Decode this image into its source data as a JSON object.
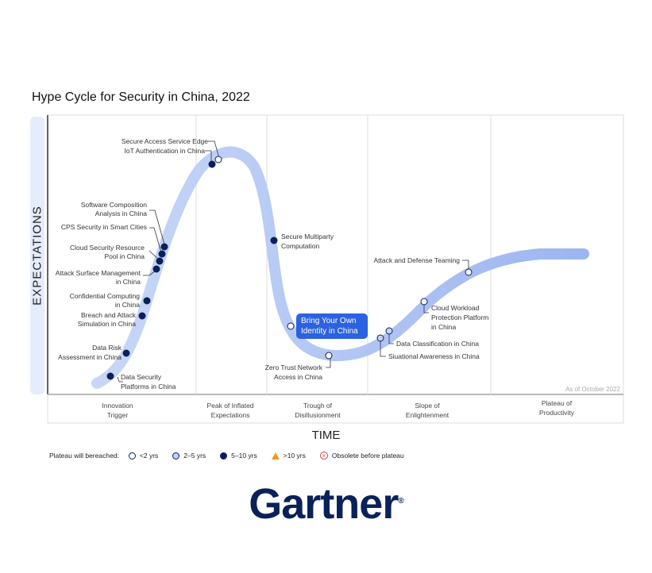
{
  "title": "Hype Cycle for Security in China, 2022",
  "y_axis": "EXPECTATIONS",
  "x_axis": "TIME",
  "as_of": "As of October 2022",
  "phases": [
    [
      "Innovation",
      "Trigger"
    ],
    [
      "Peak of Inflated",
      "Expectations"
    ],
    [
      "Trough of",
      "Disillusionment"
    ],
    [
      "Slope of",
      "Enlightenment"
    ],
    [
      "Plateau of",
      "Productivity"
    ]
  ],
  "technologies": [
    {
      "name": [
        "Secure Access Service Edge"
      ],
      "category": "<2 yrs",
      "phase": "Peak of Inflated Expectations"
    },
    {
      "name": [
        "IoT Authentication in China"
      ],
      "category": "5-10 yrs",
      "phase": "Peak of Inflated Expectations"
    },
    {
      "name": [
        "Software Composition",
        "Analysis in China"
      ],
      "category": "5-10 yrs",
      "phase": "Innovation Trigger"
    },
    {
      "name": [
        "CPS Security in Smart Cities"
      ],
      "category": "5-10 yrs",
      "phase": "Innovation Trigger"
    },
    {
      "name": [
        "Cloud Security Resource",
        "Pool in China"
      ],
      "category": "5-10 yrs",
      "phase": "Innovation Trigger"
    },
    {
      "name": [
        "Attack Surface Management",
        "in China"
      ],
      "category": "5-10 yrs",
      "phase": "Innovation Trigger"
    },
    {
      "name": [
        "Confidential Computing",
        "in China"
      ],
      "category": "5-10 yrs",
      "phase": "Innovation Trigger"
    },
    {
      "name": [
        "Breach and Attack",
        "Simulation in China"
      ],
      "category": "5-10 yrs",
      "phase": "Innovation Trigger"
    },
    {
      "name": [
        "Data Risk",
        "Assessment in China"
      ],
      "category": "5-10 yrs",
      "phase": "Innovation Trigger"
    },
    {
      "name": [
        "Data Security",
        "Platforms in China"
      ],
      "category": "5-10 yrs",
      "phase": "Innovation Trigger"
    },
    {
      "name": [
        "Secure Multiparty",
        "Computation"
      ],
      "category": "5-10 yrs",
      "phase": "Trough of Disillusionment"
    },
    {
      "name": [
        "Bring Your Own",
        "Identity in China"
      ],
      "category": "<2 yrs",
      "phase": "Trough of Disillusionment"
    },
    {
      "name": [
        "Zero Trust Network",
        "Access in China"
      ],
      "category": "<2 yrs",
      "phase": "Trough of Disillusionment"
    },
    {
      "name": [
        "Siuational Awareness in China"
      ],
      "category": "2-5 yrs",
      "phase": "Slope of Enlightenment"
    },
    {
      "name": [
        "Data Classification in China"
      ],
      "category": "2-5 yrs",
      "phase": "Slope of Enlightenment"
    },
    {
      "name": [
        "Cloud Workload",
        "Protection Platform",
        "in China"
      ],
      "category": "<2 yrs",
      "phase": "Slope of Enlightenment"
    },
    {
      "name": [
        "Attack and Defense Teaming"
      ],
      "category": "<2 yrs",
      "phase": "Slope of Enlightenment"
    }
  ],
  "legend": {
    "title": "Plateau will bereached:",
    "items": [
      "<2 yrs",
      "2–5 yrs",
      "5–10 yrs",
      ">10 yrs",
      "Obsolete before plateau"
    ]
  },
  "colors": {
    "lt2": "#ffffff",
    "2to5": "#c3d3f5",
    "5to10": "#0a1f5c",
    "gt10": "#f39a1e",
    "obsolete": "#e23b3b",
    "curve": "#c3d3f5",
    "highlight": "#2c62e0"
  },
  "logo": "Gartner"
}
